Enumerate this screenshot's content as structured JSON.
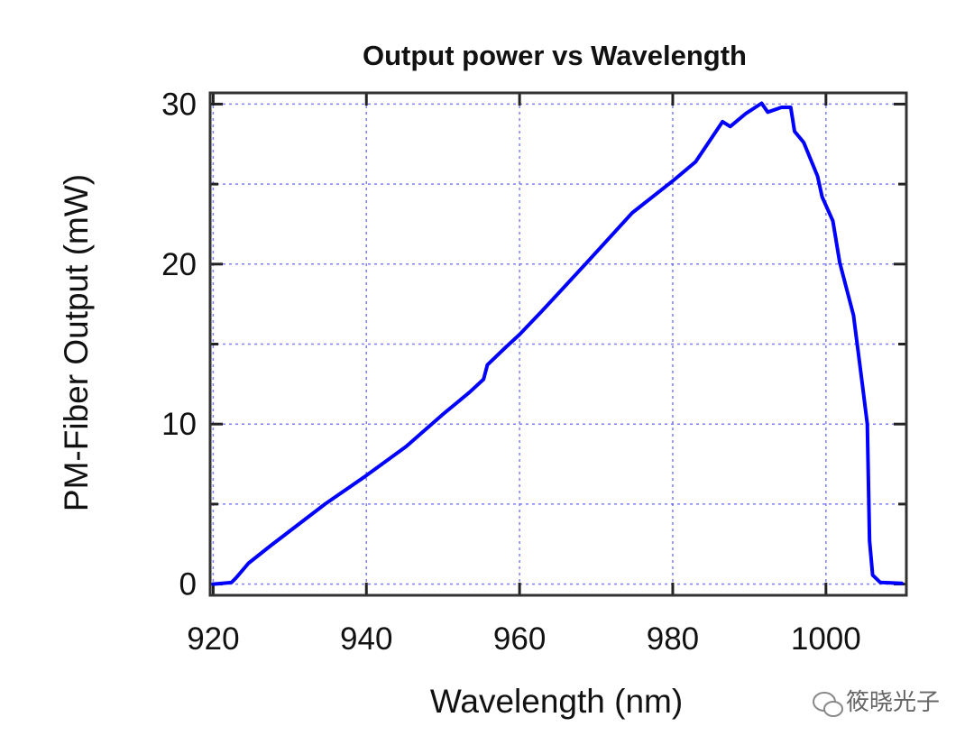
{
  "chart_data": {
    "type": "line",
    "title": "Output power vs Wavelength",
    "xlabel": "Wavelength (nm)",
    "ylabel": "PM-Fiber Output (mW)",
    "xlim": [
      919.6,
      1010.5
    ],
    "ylim": [
      -0.7,
      30.7
    ],
    "xticks": [
      920,
      940,
      960,
      980,
      1000
    ],
    "yticks": [
      0,
      10,
      20,
      30
    ],
    "grid": true,
    "grid_color": "#4a4aff",
    "line_color": "#0000ff",
    "series": [
      {
        "name": "PM-Fiber Output",
        "x": [
          920,
          922.4,
          923.1,
          924.6,
          927.5,
          934.6,
          939.9,
          945.2,
          949.95,
          953.5,
          955.3,
          955.8,
          958.2,
          960,
          962.9,
          965.9,
          968.8,
          974.7,
          980,
          983,
          986.5,
          987.5,
          989.5,
          991.6,
          992.4,
          994.2,
          995.4,
          995.9,
          997.1,
          998.9,
          999.5,
          1000.9,
          1001.8,
          1003.6,
          1004.8,
          1005.4,
          1005.7,
          1006.1,
          1007.1,
          1009.9
        ],
        "y": [
          0,
          0.1,
          0.45,
          1.3,
          2.4,
          5.0,
          6.75,
          8.6,
          10.6,
          12.0,
          12.8,
          13.7,
          14.8,
          15.6,
          17.05,
          18.6,
          20.1,
          23.2,
          25.2,
          26.4,
          28.9,
          28.6,
          29.4,
          30.05,
          29.5,
          29.8,
          29.8,
          28.3,
          27.6,
          25.5,
          24.2,
          22.7,
          20.1,
          16.8,
          12.3,
          10.0,
          2.7,
          0.56,
          0.1,
          0.05
        ]
      }
    ]
  },
  "watermark": "筱晓光子"
}
